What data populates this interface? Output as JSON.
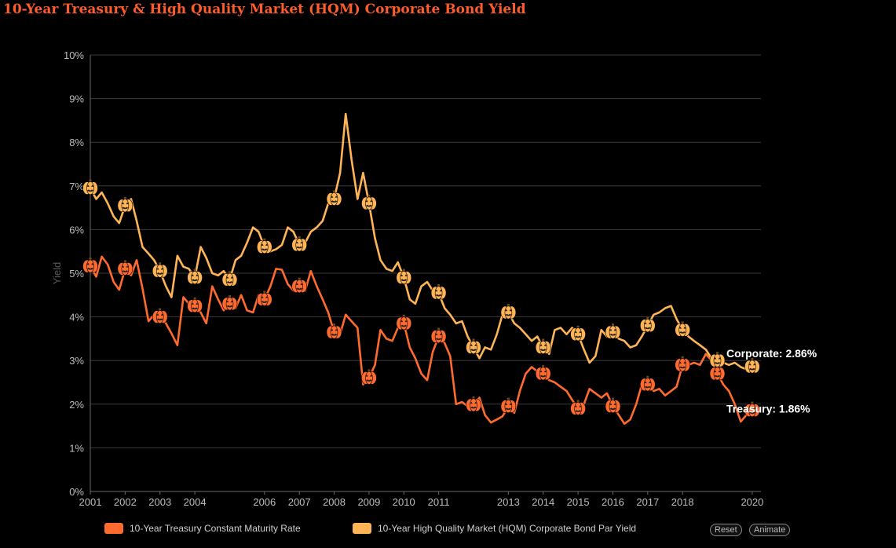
{
  "title": "10-Year Treasury & High Quality Market (HQM) Corporate Bond Yield",
  "buttons": {
    "reset": "Reset",
    "animate": "Animate"
  },
  "colors": {
    "treasury": "#ff6a2e",
    "corporate": "#ffb455",
    "background": "#000000",
    "grid": "#3a3a3a"
  },
  "icons": {
    "marker": "pumpkin-icon"
  },
  "chart_data": {
    "type": "line",
    "title": "10-Year Treasury & High Quality Market (HQM) Corporate Bond Yield",
    "xlabel": "",
    "ylabel": "Yield",
    "xlim": [
      2001,
      2020.25
    ],
    "ylim": [
      0,
      10
    ],
    "x_ticks": [
      "2001",
      "2002",
      "2003",
      "2004",
      "2006",
      "2007",
      "2008",
      "2009",
      "2010",
      "2011",
      "2013",
      "2014",
      "2015",
      "2016",
      "2017",
      "2018",
      "2020"
    ],
    "y_ticks": [
      "0%",
      "1%",
      "2%",
      "3%",
      "4%",
      "5%",
      "6%",
      "7%",
      "8%",
      "9%",
      "10%"
    ],
    "grid": true,
    "legend_position": "bottom",
    "end_labels": {
      "corporate": "Corporate: 2.86%",
      "treasury": "Treasury: 1.86%"
    },
    "series": [
      {
        "name": "10-Year Treasury Constant Maturity Rate",
        "key": "treasury",
        "points": [
          [
            2001.0,
            5.16
          ],
          [
            2001.17,
            4.92
          ],
          [
            2001.33,
            5.38
          ],
          [
            2001.5,
            5.2
          ],
          [
            2001.67,
            4.8
          ],
          [
            2001.83,
            4.62
          ],
          [
            2002.0,
            5.1
          ],
          [
            2002.17,
            4.95
          ],
          [
            2002.33,
            5.3
          ],
          [
            2002.5,
            4.65
          ],
          [
            2002.67,
            3.9
          ],
          [
            2002.83,
            4.05
          ],
          [
            2003.0,
            4.0
          ],
          [
            2003.17,
            3.85
          ],
          [
            2003.33,
            3.62
          ],
          [
            2003.5,
            3.35
          ],
          [
            2003.67,
            4.45
          ],
          [
            2003.83,
            4.3
          ],
          [
            2004.0,
            4.25
          ],
          [
            2004.17,
            4.1
          ],
          [
            2004.33,
            3.85
          ],
          [
            2004.5,
            4.7
          ],
          [
            2004.67,
            4.4
          ],
          [
            2004.83,
            4.15
          ],
          [
            2005.0,
            4.3
          ],
          [
            2005.17,
            4.2
          ],
          [
            2005.33,
            4.5
          ],
          [
            2005.5,
            4.15
          ],
          [
            2005.67,
            4.1
          ],
          [
            2005.83,
            4.5
          ],
          [
            2006.0,
            4.4
          ],
          [
            2006.17,
            4.7
          ],
          [
            2006.33,
            5.1
          ],
          [
            2006.5,
            5.08
          ],
          [
            2006.67,
            4.75
          ],
          [
            2006.83,
            4.6
          ],
          [
            2007.0,
            4.7
          ],
          [
            2007.17,
            4.6
          ],
          [
            2007.33,
            5.05
          ],
          [
            2007.5,
            4.7
          ],
          [
            2007.67,
            4.4
          ],
          [
            2007.83,
            4.1
          ],
          [
            2008.0,
            3.65
          ],
          [
            2008.17,
            3.6
          ],
          [
            2008.33,
            4.05
          ],
          [
            2008.5,
            3.9
          ],
          [
            2008.67,
            3.75
          ],
          [
            2008.83,
            2.45
          ],
          [
            2009.0,
            2.6
          ],
          [
            2009.17,
            2.9
          ],
          [
            2009.33,
            3.7
          ],
          [
            2009.5,
            3.5
          ],
          [
            2009.67,
            3.45
          ],
          [
            2009.83,
            3.75
          ],
          [
            2010.0,
            3.85
          ],
          [
            2010.17,
            3.3
          ],
          [
            2010.33,
            3.05
          ],
          [
            2010.5,
            2.7
          ],
          [
            2010.67,
            2.55
          ],
          [
            2010.83,
            3.2
          ],
          [
            2011.0,
            3.55
          ],
          [
            2011.17,
            3.4
          ],
          [
            2011.33,
            3.1
          ],
          [
            2011.5,
            2.0
          ],
          [
            2011.67,
            2.05
          ],
          [
            2011.83,
            1.95
          ],
          [
            2012.0,
            1.98
          ],
          [
            2012.17,
            2.15
          ],
          [
            2012.33,
            1.75
          ],
          [
            2012.5,
            1.58
          ],
          [
            2012.67,
            1.65
          ],
          [
            2012.83,
            1.72
          ],
          [
            2013.0,
            1.95
          ],
          [
            2013.17,
            1.8
          ],
          [
            2013.33,
            2.3
          ],
          [
            2013.5,
            2.7
          ],
          [
            2013.67,
            2.85
          ],
          [
            2013.83,
            2.75
          ],
          [
            2014.0,
            2.7
          ],
          [
            2014.17,
            2.55
          ],
          [
            2014.33,
            2.5
          ],
          [
            2014.5,
            2.4
          ],
          [
            2014.67,
            2.3
          ],
          [
            2014.83,
            2.1
          ],
          [
            2015.0,
            1.9
          ],
          [
            2015.17,
            2.0
          ],
          [
            2015.33,
            2.35
          ],
          [
            2015.5,
            2.25
          ],
          [
            2015.67,
            2.15
          ],
          [
            2015.83,
            2.25
          ],
          [
            2016.0,
            1.95
          ],
          [
            2016.17,
            1.75
          ],
          [
            2016.33,
            1.55
          ],
          [
            2016.5,
            1.65
          ],
          [
            2016.67,
            2.0
          ],
          [
            2016.83,
            2.45
          ],
          [
            2017.0,
            2.45
          ],
          [
            2017.17,
            2.3
          ],
          [
            2017.33,
            2.35
          ],
          [
            2017.5,
            2.2
          ],
          [
            2017.67,
            2.3
          ],
          [
            2017.83,
            2.4
          ],
          [
            2018.0,
            2.9
          ],
          [
            2018.17,
            2.9
          ],
          [
            2018.33,
            2.95
          ],
          [
            2018.5,
            2.9
          ],
          [
            2018.67,
            3.15
          ],
          [
            2018.83,
            3.0
          ],
          [
            2019.0,
            2.7
          ],
          [
            2019.17,
            2.45
          ],
          [
            2019.33,
            2.3
          ],
          [
            2019.5,
            2.0
          ],
          [
            2019.67,
            1.6
          ],
          [
            2019.83,
            1.75
          ],
          [
            2020.0,
            1.86
          ]
        ]
      },
      {
        "name": "10-Year High Quality Market (HQM) Corporate Bond Par Yield",
        "key": "corporate",
        "points": [
          [
            2001.0,
            6.95
          ],
          [
            2001.17,
            6.7
          ],
          [
            2001.33,
            6.85
          ],
          [
            2001.5,
            6.6
          ],
          [
            2001.67,
            6.3
          ],
          [
            2001.83,
            6.15
          ],
          [
            2002.0,
            6.55
          ],
          [
            2002.17,
            6.7
          ],
          [
            2002.33,
            6.2
          ],
          [
            2002.5,
            5.6
          ],
          [
            2002.67,
            5.45
          ],
          [
            2002.83,
            5.3
          ],
          [
            2003.0,
            5.05
          ],
          [
            2003.17,
            4.7
          ],
          [
            2003.33,
            4.45
          ],
          [
            2003.5,
            5.4
          ],
          [
            2003.67,
            5.15
          ],
          [
            2003.83,
            5.1
          ],
          [
            2004.0,
            4.9
          ],
          [
            2004.17,
            5.6
          ],
          [
            2004.33,
            5.35
          ],
          [
            2004.5,
            5.0
          ],
          [
            2004.67,
            4.95
          ],
          [
            2004.83,
            5.05
          ],
          [
            2005.0,
            4.85
          ],
          [
            2005.17,
            5.3
          ],
          [
            2005.33,
            5.4
          ],
          [
            2005.5,
            5.7
          ],
          [
            2005.67,
            6.05
          ],
          [
            2005.83,
            5.95
          ],
          [
            2006.0,
            5.6
          ],
          [
            2006.17,
            5.5
          ],
          [
            2006.33,
            5.55
          ],
          [
            2006.5,
            5.65
          ],
          [
            2006.67,
            6.05
          ],
          [
            2006.83,
            5.95
          ],
          [
            2007.0,
            5.65
          ],
          [
            2007.17,
            5.7
          ],
          [
            2007.33,
            5.95
          ],
          [
            2007.5,
            6.05
          ],
          [
            2007.67,
            6.2
          ],
          [
            2007.83,
            6.6
          ],
          [
            2008.0,
            6.7
          ],
          [
            2008.17,
            7.3
          ],
          [
            2008.33,
            8.65
          ],
          [
            2008.5,
            7.6
          ],
          [
            2008.67,
            6.7
          ],
          [
            2008.83,
            7.3
          ],
          [
            2009.0,
            6.6
          ],
          [
            2009.17,
            5.8
          ],
          [
            2009.33,
            5.3
          ],
          [
            2009.5,
            5.1
          ],
          [
            2009.67,
            5.05
          ],
          [
            2009.83,
            5.25
          ],
          [
            2010.0,
            4.9
          ],
          [
            2010.17,
            4.4
          ],
          [
            2010.33,
            4.3
          ],
          [
            2010.5,
            4.7
          ],
          [
            2010.67,
            4.8
          ],
          [
            2010.83,
            4.6
          ],
          [
            2011.0,
            4.55
          ],
          [
            2011.17,
            4.2
          ],
          [
            2011.33,
            4.05
          ],
          [
            2011.5,
            3.85
          ],
          [
            2011.67,
            3.9
          ],
          [
            2011.83,
            3.55
          ],
          [
            2012.0,
            3.3
          ],
          [
            2012.17,
            3.05
          ],
          [
            2012.33,
            3.3
          ],
          [
            2012.5,
            3.25
          ],
          [
            2012.67,
            3.6
          ],
          [
            2012.83,
            4.05
          ],
          [
            2013.0,
            4.1
          ],
          [
            2013.17,
            3.85
          ],
          [
            2013.33,
            3.75
          ],
          [
            2013.5,
            3.6
          ],
          [
            2013.67,
            3.45
          ],
          [
            2013.83,
            3.55
          ],
          [
            2014.0,
            3.3
          ],
          [
            2014.17,
            3.15
          ],
          [
            2014.33,
            3.7
          ],
          [
            2014.5,
            3.75
          ],
          [
            2014.67,
            3.6
          ],
          [
            2014.83,
            3.75
          ],
          [
            2015.0,
            3.6
          ],
          [
            2015.17,
            3.25
          ],
          [
            2015.33,
            2.95
          ],
          [
            2015.5,
            3.1
          ],
          [
            2015.67,
            3.7
          ],
          [
            2015.83,
            3.55
          ],
          [
            2016.0,
            3.65
          ],
          [
            2016.17,
            3.5
          ],
          [
            2016.33,
            3.45
          ],
          [
            2016.5,
            3.3
          ],
          [
            2016.67,
            3.35
          ],
          [
            2016.83,
            3.55
          ],
          [
            2017.0,
            3.8
          ],
          [
            2017.17,
            4.05
          ],
          [
            2017.33,
            4.1
          ],
          [
            2017.5,
            4.2
          ],
          [
            2017.67,
            4.25
          ],
          [
            2017.83,
            3.95
          ],
          [
            2018.0,
            3.7
          ],
          [
            2018.17,
            3.55
          ],
          [
            2018.33,
            3.45
          ],
          [
            2018.5,
            3.35
          ],
          [
            2018.67,
            3.25
          ],
          [
            2018.83,
            3.05
          ],
          [
            2019.0,
            3.0
          ],
          [
            2019.17,
            2.95
          ],
          [
            2019.33,
            2.9
          ],
          [
            2019.5,
            2.95
          ],
          [
            2019.67,
            2.85
          ],
          [
            2019.83,
            2.8
          ],
          [
            2020.0,
            2.86
          ]
        ]
      }
    ]
  }
}
